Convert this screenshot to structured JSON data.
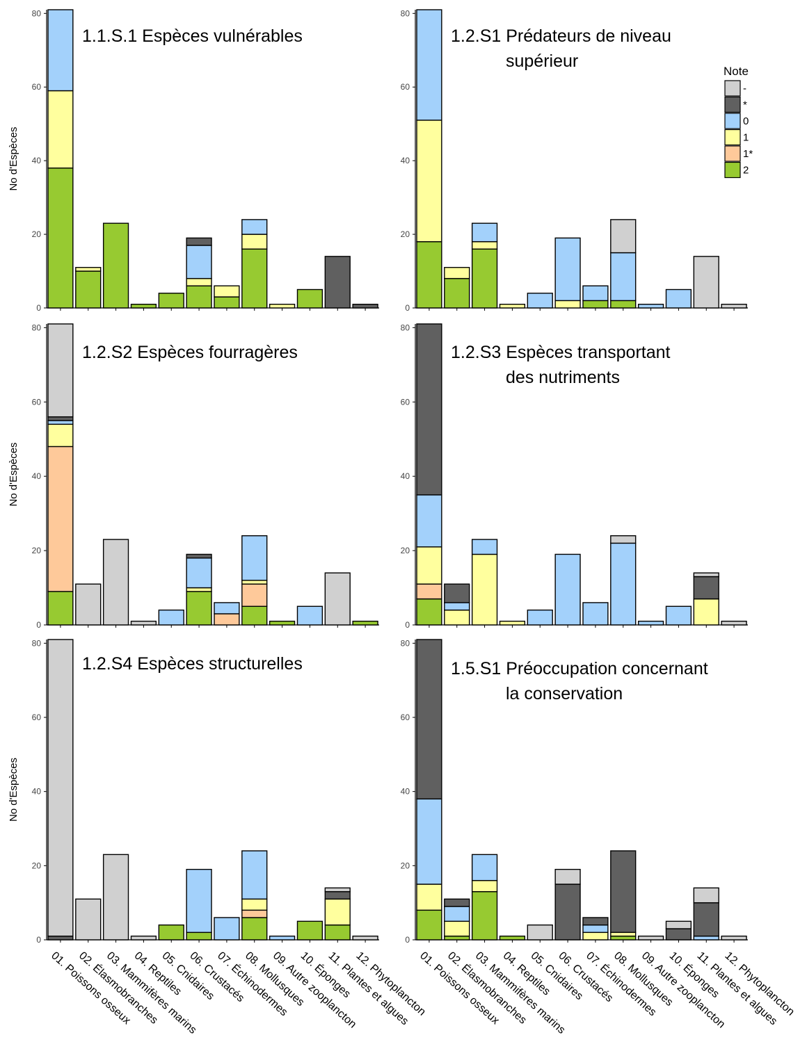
{
  "colors": {
    "-": "#d0d0d0",
    "*": "#606060",
    "0": "#a3d1fb",
    "1": "#ffff9e",
    "1*": "#fec99a",
    "2": "#97ca31"
  },
  "legend": {
    "title": "Note",
    "items": [
      "-",
      "*",
      "0",
      "1",
      "1*",
      "2"
    ]
  },
  "y_axis_label": "No d'Espèces",
  "chart_data": [
    {
      "type": "bar",
      "stacked": true,
      "title_lines": [
        "1.1.S.1 Espèces vulnérables"
      ],
      "ylabel": "No d'Espèces",
      "ylim": [
        0,
        81
      ],
      "yticks": [
        0,
        20,
        40,
        60,
        80
      ],
      "categories": [
        "01. Poissons osseux",
        "02. Élasmobranches",
        "03. Mammifères marins",
        "04. Reptiles",
        "05. Cnidaires",
        "06. Crustacés",
        "07. Échinodermes",
        "08. Mollusques",
        "09. Autre zooplancton",
        "10. Éponges",
        "11. Plantes et algues",
        "12. Phytoplancton"
      ],
      "series": [
        {
          "name": "2",
          "values": [
            38,
            10,
            23,
            1,
            4,
            6,
            3,
            16,
            0,
            5,
            0,
            0
          ]
        },
        {
          "name": "1*",
          "values": [
            0,
            0,
            0,
            0,
            0,
            0,
            0,
            0,
            0,
            0,
            0,
            0
          ]
        },
        {
          "name": "1",
          "values": [
            21,
            1,
            0,
            0,
            0,
            2,
            3,
            4,
            1,
            0,
            0,
            0
          ]
        },
        {
          "name": "0",
          "values": [
            22,
            0,
            0,
            0,
            0,
            9,
            0,
            4,
            0,
            0,
            0,
            0
          ]
        },
        {
          "name": "*",
          "values": [
            0,
            0,
            0,
            0,
            0,
            2,
            0,
            0,
            0,
            0,
            14,
            1
          ]
        },
        {
          "name": "-",
          "values": [
            0,
            0,
            0,
            0,
            0,
            0,
            0,
            0,
            0,
            0,
            0,
            0
          ]
        }
      ]
    },
    {
      "type": "bar",
      "stacked": true,
      "title_lines": [
        "1.2.S1 Prédateurs de niveau",
        "supérieur"
      ],
      "ylabel": "",
      "ylim": [
        0,
        81
      ],
      "yticks": [
        0,
        20,
        40,
        60,
        80
      ],
      "categories": [
        "01. Poissons osseux",
        "02. Élasmobranches",
        "03. Mammifères marins",
        "04. Reptiles",
        "05. Cnidaires",
        "06. Crustacés",
        "07. Échinodermes",
        "08. Mollusques",
        "09. Autre zooplancton",
        "10. Éponges",
        "11. Plantes et algues",
        "12. Phytoplancton"
      ],
      "series": [
        {
          "name": "2",
          "values": [
            18,
            8,
            16,
            0,
            0,
            0,
            2,
            2,
            0,
            0,
            0,
            0
          ]
        },
        {
          "name": "1*",
          "values": [
            0,
            0,
            0,
            0,
            0,
            0,
            0,
            0,
            0,
            0,
            0,
            0
          ]
        },
        {
          "name": "1",
          "values": [
            33,
            3,
            2,
            1,
            0,
            2,
            0,
            0,
            0,
            0,
            0,
            0
          ]
        },
        {
          "name": "0",
          "values": [
            30,
            0,
            5,
            0,
            4,
            17,
            4,
            13,
            1,
            5,
            0,
            0
          ]
        },
        {
          "name": "*",
          "values": [
            0,
            0,
            0,
            0,
            0,
            0,
            0,
            0,
            0,
            0,
            0,
            0
          ]
        },
        {
          "name": "-",
          "values": [
            0,
            0,
            0,
            0,
            0,
            0,
            0,
            9,
            0,
            0,
            14,
            1
          ]
        }
      ]
    },
    {
      "type": "bar",
      "stacked": true,
      "title_lines": [
        "1.2.S2 Espèces fourragères"
      ],
      "ylabel": "No d'Espèces",
      "ylim": [
        0,
        81
      ],
      "yticks": [
        0,
        20,
        40,
        60,
        80
      ],
      "categories": [
        "01. Poissons osseux",
        "02. Élasmobranches",
        "03. Mammifères marins",
        "04. Reptiles",
        "05. Cnidaires",
        "06. Crustacés",
        "07. Échinodermes",
        "08. Mollusques",
        "09. Autre zooplancton",
        "10. Éponges",
        "11. Plantes et algues",
        "12. Phytoplancton"
      ],
      "series": [
        {
          "name": "2",
          "values": [
            9,
            0,
            0,
            0,
            0,
            9,
            0,
            5,
            1,
            0,
            0,
            1
          ]
        },
        {
          "name": "1*",
          "values": [
            39,
            0,
            0,
            0,
            0,
            0,
            3,
            6,
            0,
            0,
            0,
            0
          ]
        },
        {
          "name": "1",
          "values": [
            6,
            0,
            0,
            0,
            0,
            1,
            0,
            1,
            0,
            0,
            0,
            0
          ]
        },
        {
          "name": "0",
          "values": [
            1,
            0,
            0,
            0,
            4,
            8,
            3,
            12,
            0,
            5,
            0,
            0
          ]
        },
        {
          "name": "*",
          "values": [
            1,
            0,
            0,
            0,
            0,
            1,
            0,
            0,
            0,
            0,
            0,
            0
          ]
        },
        {
          "name": "-",
          "values": [
            25,
            11,
            23,
            1,
            0,
            0,
            0,
            0,
            0,
            0,
            14,
            0
          ]
        }
      ]
    },
    {
      "type": "bar",
      "stacked": true,
      "title_lines": [
        "1.2.S3 Espèces  transportant",
        "des nutriments"
      ],
      "ylabel": "",
      "ylim": [
        0,
        81
      ],
      "yticks": [
        0,
        20,
        40,
        60,
        80
      ],
      "categories": [
        "01. Poissons osseux",
        "02. Élasmobranches",
        "03. Mammifères marins",
        "04. Reptiles",
        "05. Cnidaires",
        "06. Crustacés",
        "07. Échinodermes",
        "08. Mollusques",
        "09. Autre zooplancton",
        "10. Éponges",
        "11. Plantes et algues",
        "12. Phytoplancton"
      ],
      "series": [
        {
          "name": "2",
          "values": [
            7,
            0,
            0,
            0,
            0,
            0,
            0,
            0,
            0,
            0,
            0,
            0
          ]
        },
        {
          "name": "1*",
          "values": [
            4,
            0,
            0,
            0,
            0,
            0,
            0,
            0,
            0,
            0,
            0,
            0
          ]
        },
        {
          "name": "1",
          "values": [
            10,
            4,
            19,
            1,
            0,
            0,
            0,
            0,
            0,
            0,
            7,
            0
          ]
        },
        {
          "name": "0",
          "values": [
            14,
            2,
            4,
            0,
            4,
            19,
            6,
            22,
            1,
            5,
            0,
            0
          ]
        },
        {
          "name": "*",
          "values": [
            46,
            5,
            0,
            0,
            0,
            0,
            0,
            0,
            0,
            0,
            6,
            0
          ]
        },
        {
          "name": "-",
          "values": [
            0,
            0,
            0,
            0,
            0,
            0,
            0,
            2,
            0,
            0,
            1,
            1
          ]
        }
      ]
    },
    {
      "type": "bar",
      "stacked": true,
      "title_lines": [
        "1.2.S4 Espèces structurelles"
      ],
      "ylabel": "No d'Espèces",
      "ylim": [
        0,
        81
      ],
      "yticks": [
        0,
        20,
        40,
        60,
        80
      ],
      "categories": [
        "01. Poissons osseux",
        "02. Élasmobranches",
        "03. Mammifères marins",
        "04. Reptiles",
        "05. Cnidaires",
        "06. Crustacés",
        "07. Échinodermes",
        "08. Mollusques",
        "09. Autre zooplancton",
        "10. Éponges",
        "11. Plantes et algues",
        "12. Phytoplancton"
      ],
      "series": [
        {
          "name": "2",
          "values": [
            0,
            0,
            0,
            0,
            4,
            2,
            0,
            6,
            0,
            5,
            4,
            0
          ]
        },
        {
          "name": "1*",
          "values": [
            0,
            0,
            0,
            0,
            0,
            0,
            0,
            2,
            0,
            0,
            0,
            0
          ]
        },
        {
          "name": "1",
          "values": [
            0,
            0,
            0,
            0,
            0,
            0,
            0,
            3,
            0,
            0,
            7,
            0
          ]
        },
        {
          "name": "0",
          "values": [
            0,
            0,
            0,
            0,
            0,
            17,
            6,
            13,
            1,
            0,
            0,
            0
          ]
        },
        {
          "name": "*",
          "values": [
            1,
            0,
            0,
            0,
            0,
            0,
            0,
            0,
            0,
            0,
            2,
            0
          ]
        },
        {
          "name": "-",
          "values": [
            80,
            11,
            23,
            1,
            0,
            0,
            0,
            0,
            0,
            0,
            1,
            1
          ]
        }
      ]
    },
    {
      "type": "bar",
      "stacked": true,
      "title_lines": [
        "1.5.S1 Préoccupation concernant",
        "la conservation"
      ],
      "ylabel": "",
      "ylim": [
        0,
        81
      ],
      "yticks": [
        0,
        20,
        40,
        60,
        80
      ],
      "categories": [
        "01. Poissons osseux",
        "02. Élasmobranches",
        "03. Mammifères marins",
        "04. Reptiles",
        "05. Cnidaires",
        "06. Crustacés",
        "07. Échinodermes",
        "08. Mollusques",
        "09. Autre zooplancton",
        "10. Éponges",
        "11. Plantes et algues",
        "12. Phytoplancton"
      ],
      "series": [
        {
          "name": "2",
          "values": [
            8,
            1,
            13,
            1,
            0,
            0,
            0,
            1,
            0,
            0,
            0,
            0
          ]
        },
        {
          "name": "1*",
          "values": [
            0,
            0,
            0,
            0,
            0,
            0,
            0,
            0,
            0,
            0,
            0,
            0
          ]
        },
        {
          "name": "1",
          "values": [
            7,
            4,
            3,
            0,
            0,
            0,
            2,
            1,
            0,
            0,
            0,
            0
          ]
        },
        {
          "name": "0",
          "values": [
            23,
            4,
            7,
            0,
            0,
            0,
            2,
            0,
            0,
            0,
            1,
            0
          ]
        },
        {
          "name": "*",
          "values": [
            43,
            2,
            0,
            0,
            0,
            15,
            2,
            22,
            0,
            3,
            9,
            0
          ]
        },
        {
          "name": "-",
          "values": [
            0,
            0,
            0,
            0,
            4,
            4,
            0,
            0,
            1,
            2,
            4,
            1
          ]
        }
      ]
    }
  ]
}
